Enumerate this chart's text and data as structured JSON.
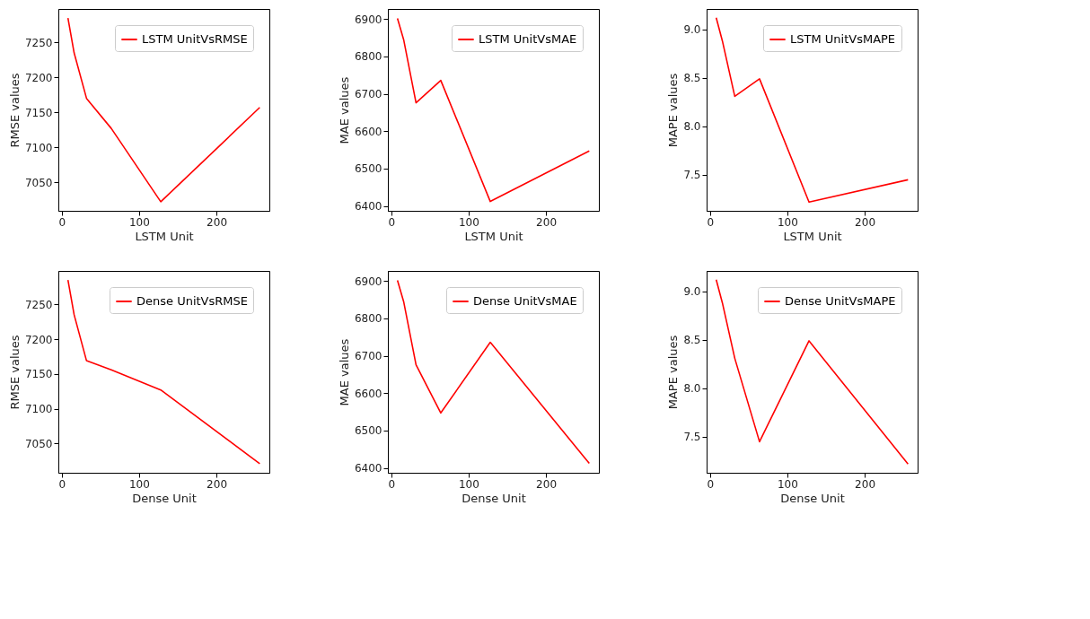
{
  "chart_data": [
    {
      "type": "line",
      "xlabel": "LSTM Unit",
      "ylabel": "RMSE values",
      "xlim": [
        -4.4,
        268.4
      ],
      "xticks": [
        0,
        100,
        200
      ],
      "ylim": [
        7009,
        7298
      ],
      "yticks": [
        7050,
        7100,
        7150,
        7200,
        7250
      ],
      "grid": false,
      "legend": "top right",
      "line_style": "solid",
      "series": [
        {
          "name": "LSTM UnitVsRMSE",
          "color": "#ff0000",
          "x": [
            8,
            16,
            32,
            64,
            128,
            256
          ],
          "values": [
            7285,
            7235,
            7170,
            7127,
            7022,
            7157
          ]
        }
      ]
    },
    {
      "type": "line",
      "xlabel": "LSTM Unit",
      "ylabel": "MAE values",
      "xlim": [
        -4.4,
        268.4
      ],
      "xticks": [
        0,
        100,
        200
      ],
      "ylim": [
        6387,
        6927
      ],
      "yticks": [
        6400,
        6500,
        6600,
        6700,
        6800,
        6900
      ],
      "grid": false,
      "legend": "top right",
      "line_style": "solid",
      "series": [
        {
          "name": "LSTM UnitVsMAE",
          "color": "#ff0000",
          "x": [
            8,
            16,
            32,
            64,
            128,
            256
          ],
          "values": [
            6902,
            6845,
            6676,
            6736,
            6412,
            6547
          ]
        }
      ]
    },
    {
      "type": "line",
      "xlabel": "LSTM Unit",
      "ylabel": "MAPE values",
      "xlim": [
        -4.4,
        268.4
      ],
      "xticks": [
        0,
        100,
        200
      ],
      "ylim": [
        7.13,
        9.21
      ],
      "yticks": [
        {
          "value": 7.5,
          "label": "7.5"
        },
        {
          "value": 8,
          "label": "8.0"
        },
        {
          "value": 8.5,
          "label": "8.5"
        },
        {
          "value": 9,
          "label": "9.0"
        }
      ],
      "grid": false,
      "legend": "top right",
      "line_style": "solid",
      "series": [
        {
          "name": "LSTM UnitVsMAPE",
          "color": "#ff0000",
          "x": [
            8,
            16,
            32,
            64,
            128,
            256
          ],
          "values": [
            9.12,
            8.88,
            8.31,
            8.49,
            7.22,
            7.45
          ]
        }
      ]
    },
    {
      "type": "line",
      "xlabel": "Dense Unit",
      "ylabel": "RMSE values",
      "xlim": [
        -4.4,
        268.4
      ],
      "xticks": [
        0,
        100,
        200
      ],
      "ylim": [
        7008,
        7298
      ],
      "yticks": [
        7050,
        7100,
        7150,
        7200,
        7250
      ],
      "grid": false,
      "legend": "top right",
      "line_style": "solid",
      "series": [
        {
          "name": "Dense UnitVsRMSE",
          "color": "#ff0000",
          "x": [
            8,
            16,
            32,
            64,
            128,
            256
          ],
          "values": [
            7285,
            7235,
            7169,
            7156,
            7127,
            7021
          ]
        }
      ]
    },
    {
      "type": "line",
      "xlabel": "Dense Unit",
      "ylabel": "MAE values",
      "xlim": [
        -4.4,
        268.4
      ],
      "xticks": [
        0,
        100,
        200
      ],
      "ylim": [
        6387,
        6927
      ],
      "yticks": [
        6400,
        6500,
        6600,
        6700,
        6800,
        6900
      ],
      "grid": false,
      "legend": "top right",
      "line_style": "solid",
      "series": [
        {
          "name": "Dense UnitVsMAE",
          "color": "#ff0000",
          "x": [
            8,
            16,
            32,
            64,
            128,
            256
          ],
          "values": [
            6902,
            6845,
            6676,
            6547,
            6736,
            6412
          ]
        }
      ]
    },
    {
      "type": "line",
      "xlabel": "Dense Unit",
      "ylabel": "MAPE values",
      "xlim": [
        -4.4,
        268.4
      ],
      "xticks": [
        0,
        100,
        200
      ],
      "ylim": [
        7.13,
        9.21
      ],
      "yticks": [
        {
          "value": 7.5,
          "label": "7.5"
        },
        {
          "value": 8,
          "label": "8.0"
        },
        {
          "value": 8.5,
          "label": "8.5"
        },
        {
          "value": 9,
          "label": "9.0"
        }
      ],
      "grid": false,
      "legend": "top right",
      "line_style": "solid",
      "series": [
        {
          "name": "Dense UnitVsMAPE",
          "color": "#ff0000",
          "x": [
            8,
            16,
            32,
            64,
            128,
            256
          ],
          "values": [
            9.12,
            8.88,
            8.31,
            7.45,
            8.49,
            7.22
          ]
        }
      ]
    }
  ]
}
